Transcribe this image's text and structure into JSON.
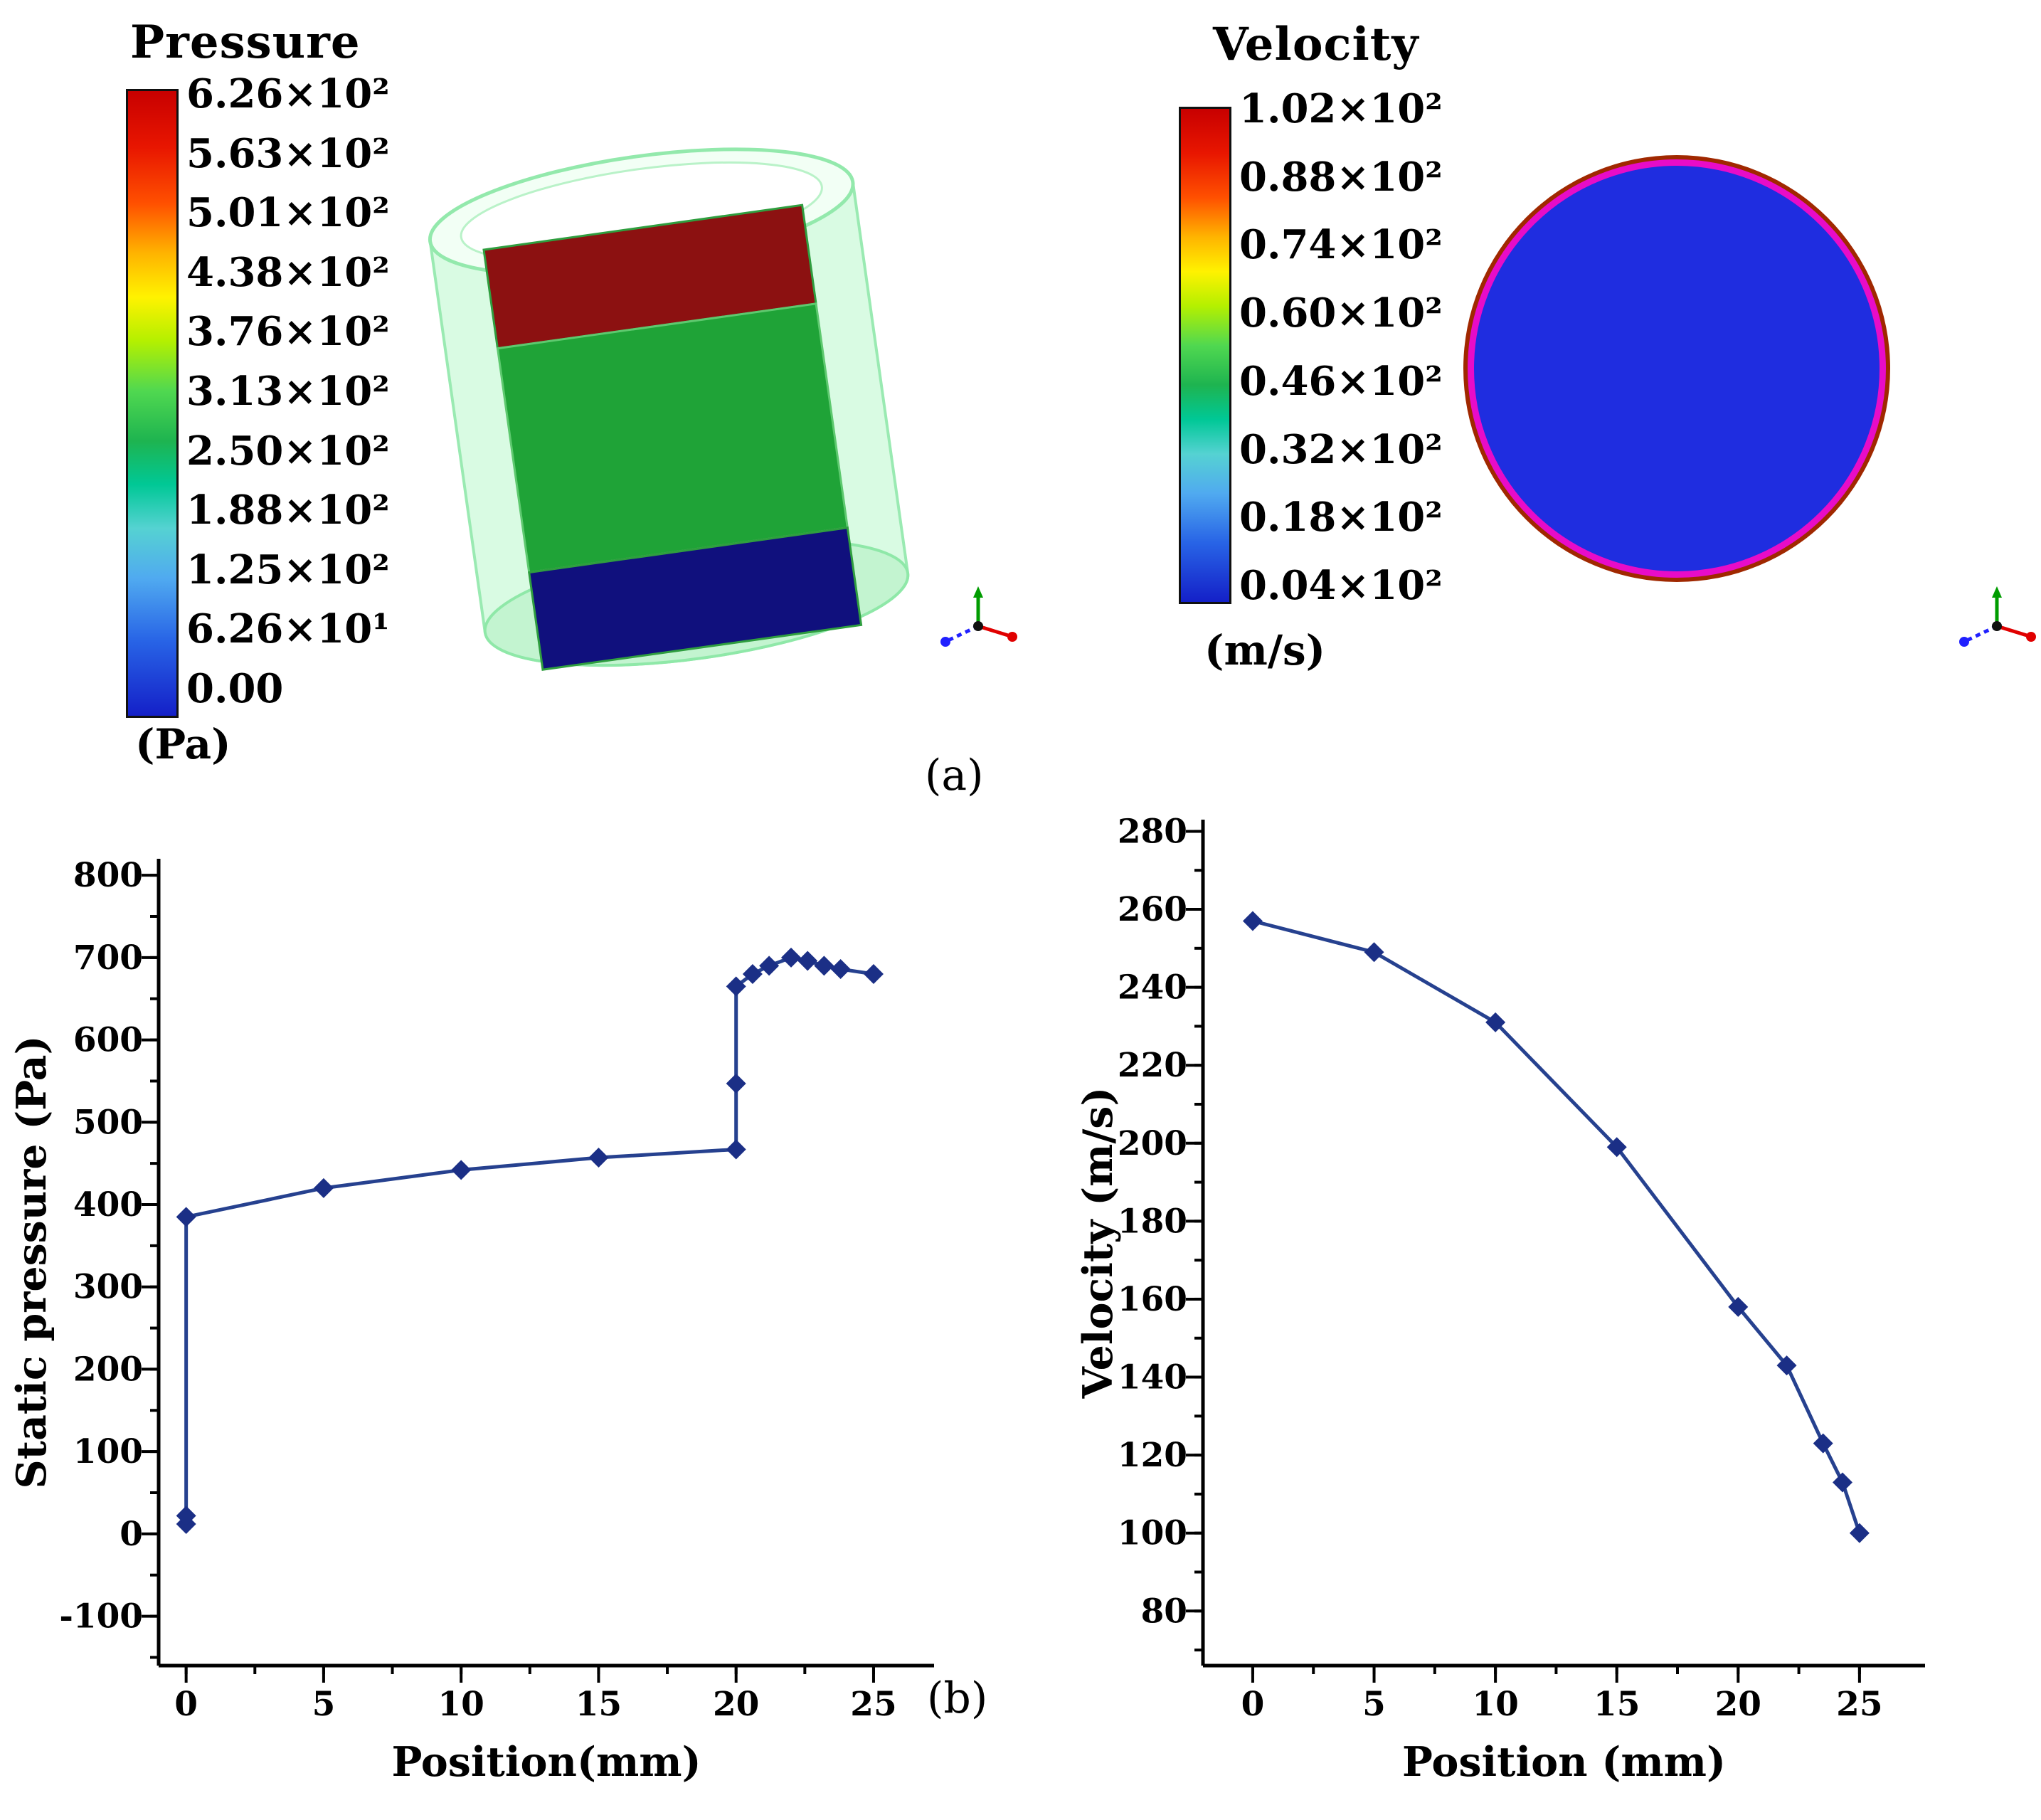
{
  "panel_labels": {
    "a": "(a)",
    "b": "(b)"
  },
  "pressure_panel": {
    "title": "Pressure",
    "unit": "(Pa)",
    "scale_labels": [
      "6.26×10²",
      "5.63×10²",
      "5.01×10²",
      "4.38×10²",
      "3.76×10²",
      "3.13×10²",
      "2.50×10²",
      "1.88×10²",
      "1.25×10²",
      "6.26×10¹",
      "0.00"
    ]
  },
  "velocity_panel": {
    "title": "Velocity",
    "unit": "(m/s)",
    "scale_labels": [
      "1.02×10²",
      "0.88×10²",
      "0.74×10²",
      "0.60×10²",
      "0.46×10²",
      "0.32×10²",
      "0.18×10²",
      "0.04×10²"
    ]
  },
  "colors": {
    "accent_line": "#26418f",
    "marker": "#1b2f86",
    "colorbar_top": "#c80000",
    "colorbar_bottom": "#1420c8",
    "cylinder_shell": "#c9f6d4",
    "band_red": "#8c1111",
    "band_green": "#1fa337",
    "band_navy": "#10107d",
    "disc_fill": "#1f2de0",
    "disc_ring": "#e80cc8",
    "disc_outer_ring": "#a02800"
  },
  "chart_data": [
    {
      "type": "line",
      "name": "static-pressure-vs-position",
      "title": "",
      "xlabel": "Position(mm)",
      "ylabel": "Static pressure (Pa)",
      "xlim": [
        -1.0,
        27.2
      ],
      "ylim": [
        -160,
        820
      ],
      "xticks": [
        0,
        5,
        10,
        15,
        20,
        25
      ],
      "yticks": [
        -100,
        0,
        100,
        200,
        300,
        400,
        500,
        600,
        700,
        800
      ],
      "x_minor_step": 2.5,
      "y_minor_step": 50,
      "grid": false,
      "legend_position": "none",
      "x": [
        0,
        0,
        0,
        5,
        10,
        15,
        20,
        20,
        20,
        20.6,
        21.2,
        22,
        22.6,
        23.2,
        23.8,
        25
      ],
      "y": [
        12,
        22,
        385,
        420,
        442,
        457,
        467,
        547,
        665,
        680,
        690,
        700,
        696,
        690,
        686,
        680
      ]
    },
    {
      "type": "line",
      "name": "velocity-vs-position",
      "title": "",
      "xlabel": "Position (mm)",
      "ylabel": "Velocity (m/s)",
      "xlim": [
        -2.05,
        27.7
      ],
      "ylim": [
        66,
        283
      ],
      "xticks": [
        0,
        5,
        10,
        15,
        20,
        25
      ],
      "yticks": [
        80,
        100,
        120,
        140,
        160,
        180,
        200,
        220,
        240,
        260,
        280
      ],
      "x_minor_step": 2.5,
      "y_minor_step": 10,
      "grid": false,
      "legend_position": "none",
      "x": [
        0,
        5,
        10,
        15,
        20,
        22,
        23.5,
        24.3,
        25
      ],
      "y": [
        257,
        249,
        231,
        199,
        158,
        143,
        123,
        113,
        100
      ]
    }
  ]
}
